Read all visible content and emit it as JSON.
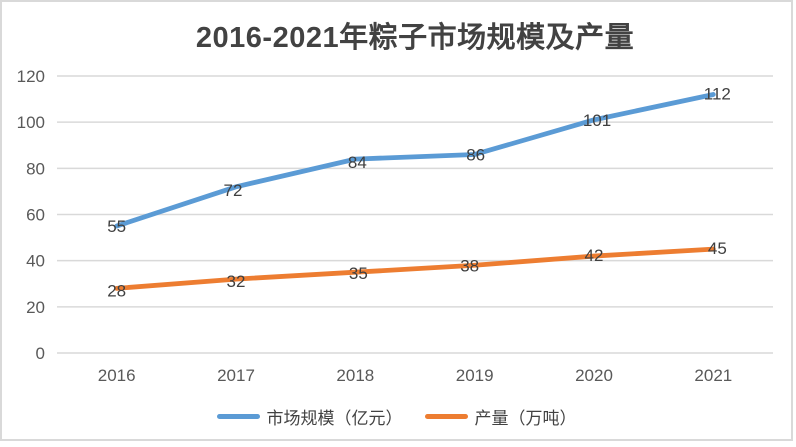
{
  "chart_data": {
    "type": "line",
    "title": "2016-2021年粽子市场规模及产量",
    "categories": [
      "2016",
      "2017",
      "2018",
      "2019",
      "2020",
      "2021"
    ],
    "series": [
      {
        "name": "市场规模（亿元）",
        "values": [
          55,
          72,
          84,
          86,
          101,
          112
        ],
        "color": "#5B9BD5"
      },
      {
        "name": "产量（万吨）",
        "values": [
          28,
          32,
          35,
          38,
          42,
          45
        ],
        "color": "#ED7D31"
      }
    ],
    "yticks": [
      0,
      20,
      40,
      60,
      80,
      100,
      120
    ],
    "ylim": [
      0,
      120
    ],
    "ytick_step": 20,
    "xlabel": "",
    "ylabel": "",
    "grid": true,
    "data_labels": true,
    "legend_position": "bottom"
  },
  "palette": {
    "grid": "#D9D9D9",
    "axis_text": "#595959",
    "label_text": "#3F3F3F",
    "title_text": "#424242",
    "frame_border": "#D9D9D9"
  }
}
